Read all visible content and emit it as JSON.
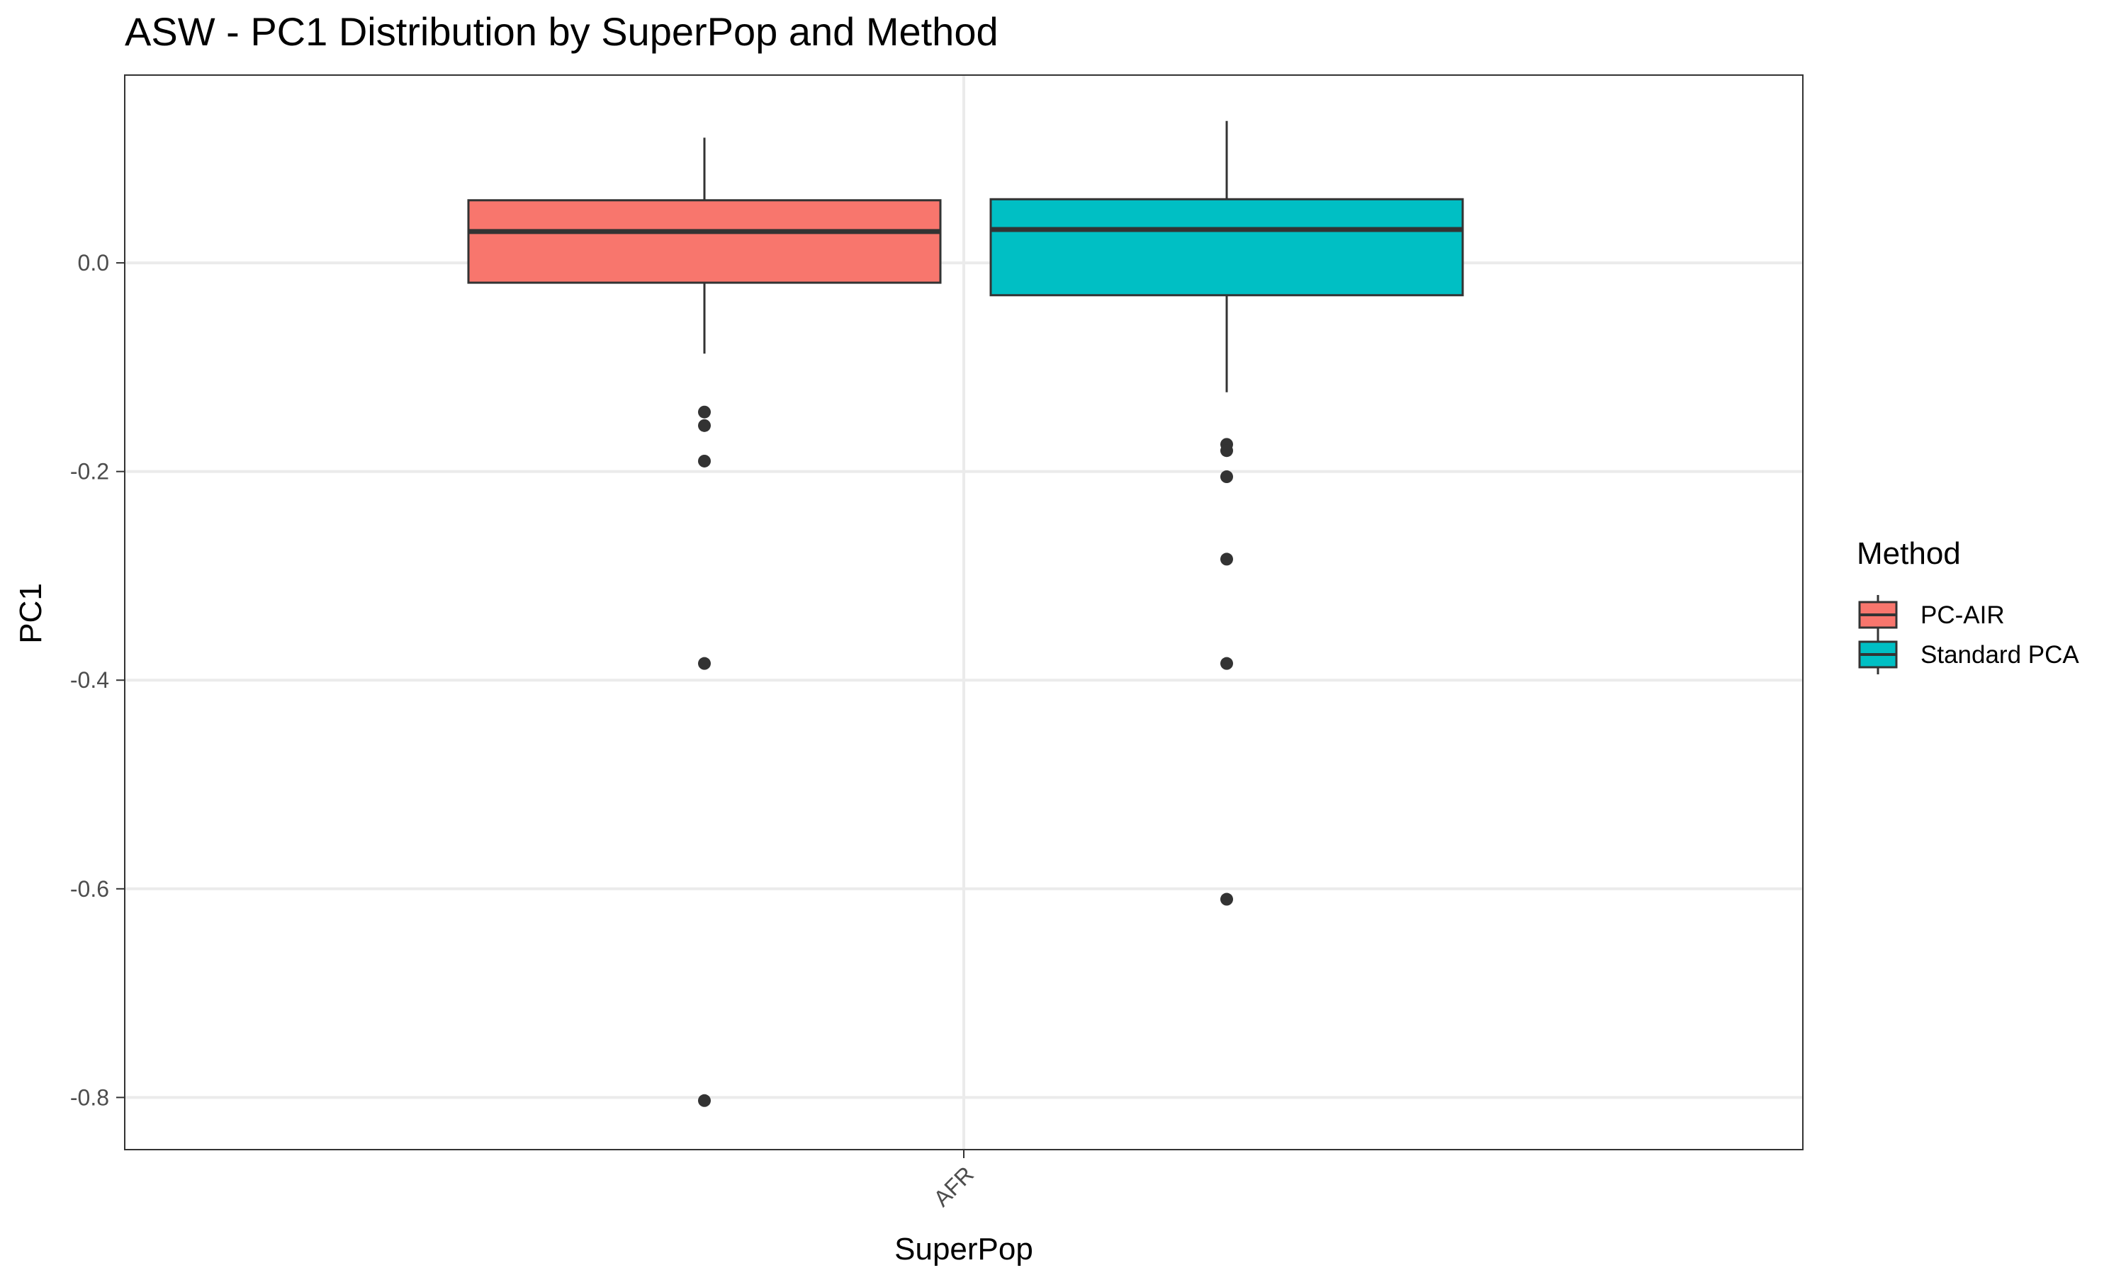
{
  "chart_data": {
    "type": "boxplot",
    "title": "ASW - PC1 Distribution by SuperPop and Method",
    "xlabel": "SuperPop",
    "ylabel": "PC1",
    "categories": [
      "AFR"
    ],
    "ylim": [
      -0.85,
      0.18
    ],
    "yticks": [
      0.0,
      -0.2,
      -0.4,
      -0.6,
      -0.8
    ],
    "ytick_labels": [
      "0.0",
      "-0.2",
      "-0.4",
      "-0.6",
      "-0.8"
    ],
    "grid": true,
    "legend": {
      "title": "Method",
      "placement": "right"
    },
    "series": [
      {
        "name": "PC-AIR",
        "color": "#F8766D",
        "category": "AFR",
        "q1": -0.019,
        "median": 0.03,
        "q3": 0.06,
        "whisker_low": -0.087,
        "whisker_high": 0.12,
        "outliers": [
          -0.143,
          -0.156,
          -0.19,
          -0.384,
          -0.803
        ]
      },
      {
        "name": "Standard PCA",
        "color": "#00BFC4",
        "category": "AFR",
        "q1": -0.031,
        "median": 0.032,
        "q3": 0.061,
        "whisker_low": -0.124,
        "whisker_high": 0.136,
        "outliers": [
          -0.174,
          -0.18,
          -0.205,
          -0.284,
          -0.384,
          -0.61
        ]
      }
    ]
  }
}
